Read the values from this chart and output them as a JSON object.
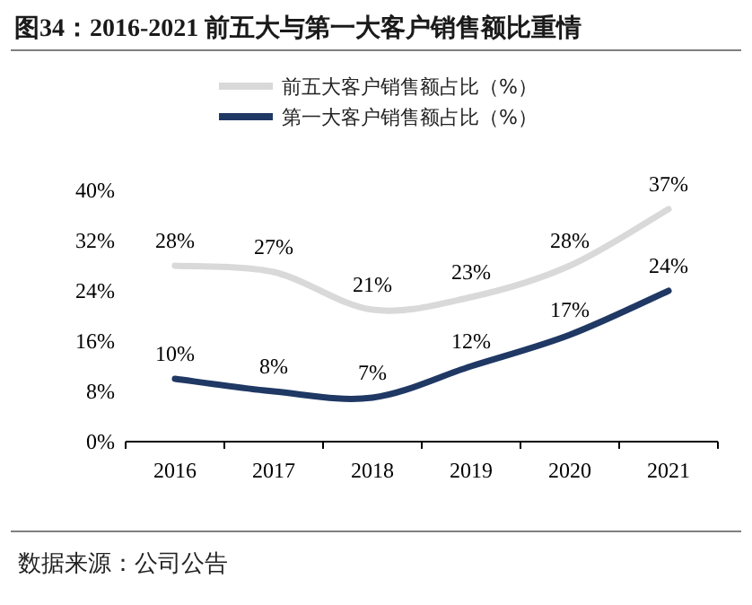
{
  "chart_data": {
    "type": "line",
    "title": "图34：2016-2021 前五大与第一大客户销售额比重情",
    "categories": [
      "2016",
      "2017",
      "2018",
      "2019",
      "2020",
      "2021"
    ],
    "series": [
      {
        "name": "前五大客户销售额占比（%）",
        "color": "#d9d9d9",
        "values": [
          28,
          27,
          21,
          23,
          28,
          37
        ],
        "value_labels": [
          "28%",
          "27%",
          "21%",
          "23%",
          "28%",
          "37%"
        ]
      },
      {
        "name": "第一大客户销售额占比（%）",
        "color": "#1f3864",
        "values": [
          10,
          8,
          7,
          12,
          17,
          24
        ],
        "value_labels": [
          "10%",
          "8%",
          "7%",
          "12%",
          "17%",
          "24%"
        ]
      }
    ],
    "ylim": [
      0,
      40
    ],
    "yticks": [
      {
        "value": 0,
        "label": "0%"
      },
      {
        "value": 8,
        "label": "8%"
      },
      {
        "value": 16,
        "label": "16%"
      },
      {
        "value": 24,
        "label": "24%"
      },
      {
        "value": 32,
        "label": "32%"
      },
      {
        "value": 40,
        "label": "40%"
      }
    ],
    "legend": "top",
    "grid": false,
    "marker": "none",
    "line_style": "solid",
    "annotations": [
      "数据来源：公司公告"
    ]
  }
}
